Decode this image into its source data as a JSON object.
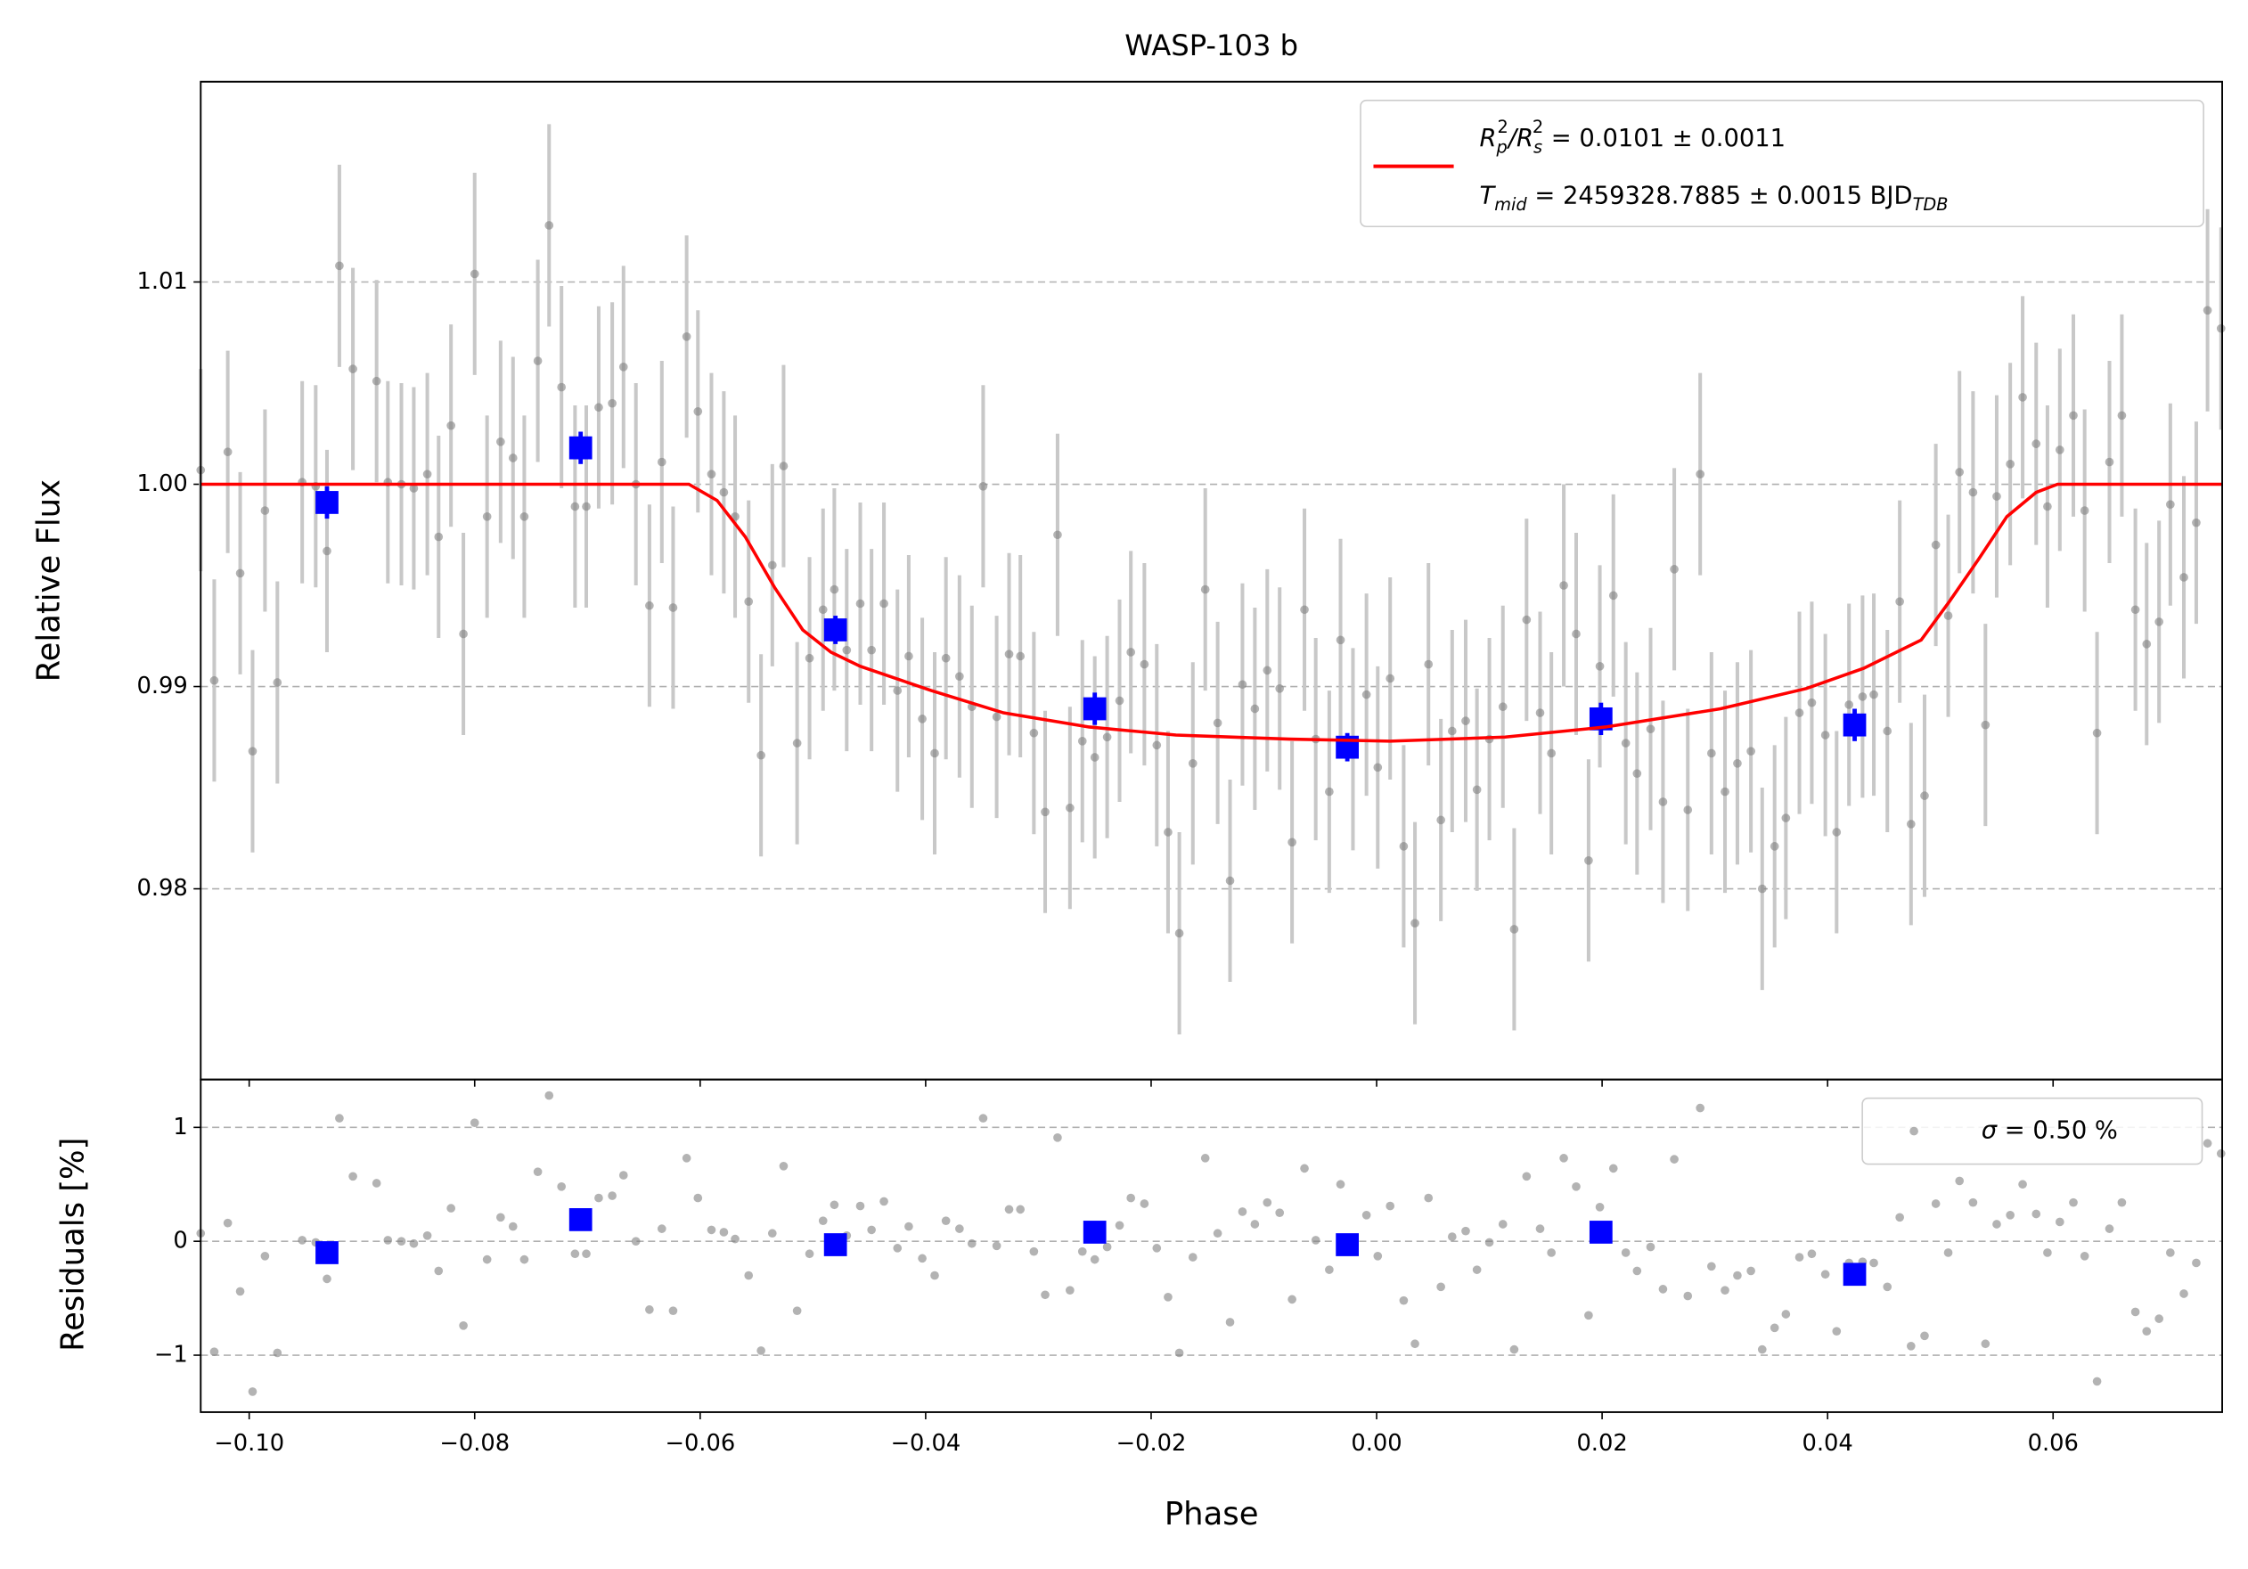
{
  "chart_data": [
    {
      "type": "scatter",
      "title": "WASP-103 b",
      "ylabel": "Relative Flux",
      "xlim": [
        -0.1043,
        0.075
      ],
      "ylim": [
        0.97057,
        1.0199
      ],
      "xticks": [
        -0.1,
        -0.08,
        -0.06,
        -0.04,
        -0.02,
        0,
        0.02,
        0.04,
        0.06
      ],
      "show_xtick_labels": false,
      "yticks": [
        0.98,
        0.99,
        {
          "value": 1,
          "label": "1.00"
        },
        1.01
      ],
      "grid": "y",
      "legend": "upper right",
      "series": [
        {
          "marker": "o",
          "color": "#808080",
          "yerr": 0.005,
          "x": [
            -0.1043,
            -0.1031,
            -0.1019,
            -0.1008,
            -0.0997,
            -0.0986,
            -0.0975,
            -0.0953,
            -0.0941,
            -0.0931,
            -0.092,
            -0.0908,
            -0.0887,
            -0.0877,
            -0.0865,
            -0.0854,
            -0.0842,
            -0.0832,
            -0.0821,
            -0.081,
            -0.08,
            -0.0789,
            -0.0777,
            -0.0766,
            -0.0756,
            -0.0744,
            -0.0734,
            -0.0723,
            -0.0711,
            -0.0701,
            -0.069,
            -0.0678,
            -0.0668,
            -0.0657,
            -0.0645,
            -0.0634,
            -0.0624,
            -0.0612,
            -0.0602,
            -0.059,
            -0.0579,
            -0.0569,
            -0.0557,
            -0.0546,
            -0.0536,
            -0.0526,
            -0.0514,
            -0.0503,
            -0.0491,
            -0.0481,
            -0.047,
            -0.0458,
            -0.0448,
            -0.0437,
            -0.0425,
            -0.0415,
            -0.0403,
            -0.0392,
            -0.0382,
            -0.037,
            -0.0359,
            -0.0349,
            -0.0337,
            -0.0326,
            -0.0316,
            -0.0304,
            -0.0294,
            -0.0283,
            -0.0272,
            -0.0261,
            -0.025,
            -0.0239,
            -0.0228,
            -0.0218,
            -0.0206,
            -0.0195,
            -0.0185,
            -0.0175,
            -0.0163,
            -0.0152,
            -0.0141,
            -0.013,
            -0.0119,
            -0.0108,
            -0.0097,
            -0.0086,
            -0.0075,
            -0.0064,
            -0.0054,
            -0.0042,
            -0.0032,
            -0.0021,
            -0.0009,
            0.0001,
            0.0012,
            0.0024,
            0.0034,
            0.0046,
            0.0057,
            0.0067,
            0.0079,
            0.0089,
            0.01,
            0.0112,
            0.0122,
            0.0133,
            0.0145,
            0.0155,
            0.0166,
            0.0177,
            0.0188,
            0.0198,
            0.021,
            0.0221,
            0.0231,
            0.0243,
            0.0254,
            0.0264,
            0.0276,
            0.0287,
            0.0297,
            0.0309,
            0.032,
            0.0332,
            0.0342,
            0.0353,
            0.0363,
            0.0375,
            0.0386,
            0.0398,
            0.0408,
            0.0419,
            0.0431,
            0.0441,
            0.0453,
            0.0464,
            0.0474,
            0.0486,
            0.0496,
            0.0507,
            0.0517,
            0.0529,
            0.054,
            0.055,
            0.0562,
            0.0573,
            0.0585,
            0.0595,
            0.0606,
            0.0618,
            0.0628,
            0.0639,
            0.065,
            0.0661,
            0.0673,
            0.0683,
            0.0694,
            0.0704,
            0.0716,
            0.0727,
            0.0737,
            0.0749
          ],
          "values": [
            1.0007,
            0.9903,
            1.0016,
            0.9956,
            0.9868,
            0.9987,
            0.9902,
            1.0001,
            0.9999,
            0.9967,
            1.0108,
            1.0057,
            1.0051,
            1.0001,
            1.0,
            0.9998,
            1.0005,
            0.9974,
            1.0029,
            0.9926,
            1.0104,
            0.9984,
            1.0021,
            1.0013,
            0.9984,
            1.0061,
            1.0128,
            1.0048,
            0.9989,
            0.9989,
            1.0038,
            1.004,
            1.0058,
            1.0,
            0.994,
            1.0011,
            0.9939,
            1.0073,
            1.0036,
            1.0005,
            0.9996,
            0.9984,
            0.9942,
            0.9866,
            0.996,
            1.0009,
            0.9872,
            0.9914,
            0.9938,
            0.9948,
            0.9918,
            0.9941,
            0.9918,
            0.9941,
            0.9898,
            0.9915,
            0.9884,
            0.9867,
            0.9914,
            0.9905,
            0.989,
            0.9999,
            0.9885,
            0.9916,
            0.9915,
            0.9877,
            0.9838,
            0.9975,
            0.984,
            0.9873,
            0.9865,
            0.9875,
            0.9893,
            0.9917,
            0.9911,
            0.9871,
            0.9828,
            0.9778,
            0.9862,
            0.9948,
            0.9882,
            0.9804,
            0.9901,
            0.9889,
            0.9908,
            0.9899,
            0.9823,
            0.9938,
            0.9874,
            0.9848,
            0.9923,
            0.9869,
            0.9896,
            0.986,
            0.9904,
            0.9821,
            0.9783,
            0.9911,
            0.9834,
            0.9878,
            0.9883,
            0.9849,
            0.9874,
            0.989,
            0.978,
            0.9933,
            0.9887,
            0.9867,
            0.995,
            0.9926,
            0.9814,
            0.991,
            0.9945,
            0.9872,
            0.9857,
            0.9879,
            0.9843,
            0.9958,
            0.9839,
            1.0005,
            0.9867,
            0.9848,
            0.9862,
            0.9868,
            0.98,
            0.9821,
            0.9835,
            0.9887,
            0.9892,
            0.9876,
            0.9828,
            0.9891,
            0.9895,
            0.9896,
            0.9878,
            0.9942,
            0.9832,
            0.9846,
            0.997,
            0.9935,
            1.0006,
            0.9996,
            0.9881,
            0.9994,
            1.001,
            1.0043,
            1.002,
            0.9989,
            1.0017,
            1.0034,
            0.9987,
            0.9877,
            1.0011,
            1.0034,
            0.9938,
            0.9921,
            0.9932,
            0.999,
            0.9954,
            0.9981,
            1.0086,
            1.0077
          ]
        },
        {
          "marker": "s",
          "color": "#0000ff",
          "x": [
            -0.0931,
            -0.0706,
            -0.048,
            -0.025,
            -0.0026,
            0.0199,
            0.0424
          ],
          "values": [
            0.9991,
            1.0018,
            0.9928,
            0.9889,
            0.987,
            0.9884,
            0.9881
          ],
          "yerr": [
            0.0008,
            0.0008,
            0.0007,
            0.0008,
            0.0007,
            0.0008,
            0.0008
          ]
        },
        {
          "marker": "line",
          "color": "#ff0000",
          "name": [
            [
              "R",
              "p",
              "2",
              "/R",
              "s",
              "2",
              " = 0.0101 ± 0.0011"
            ],
            [
              "T",
              "mid",
              " = 2459328.7885 ± 0.0015 BJD",
              "TDB"
            ]
          ],
          "x": [
            -0.1043,
            -0.061,
            -0.0585,
            -0.056,
            -0.0534,
            -0.0509,
            -0.0484,
            -0.0458,
            -0.0395,
            -0.0331,
            -0.0255,
            -0.0178,
            -0.0077,
            0.0012,
            0.0114,
            0.0203,
            0.0305,
            0.0381,
            0.0432,
            0.0483,
            0.0508,
            0.0534,
            0.0559,
            0.0585,
            0.0604,
            0.075
          ],
          "values": [
            1.0,
            1.0,
            0.9992,
            0.9974,
            0.9949,
            0.9928,
            0.9917,
            0.991,
            0.9898,
            0.9887,
            0.988,
            0.9876,
            0.9874,
            0.9873,
            0.9875,
            0.988,
            0.9889,
            0.9899,
            0.9909,
            0.9923,
            0.9942,
            0.9963,
            0.9984,
            0.9996,
            1.0,
            1.0
          ]
        }
      ]
    },
    {
      "type": "scatter",
      "xlabel": "Phase",
      "ylabel": "Residuals [%]",
      "xlim": [
        -0.1043,
        0.075
      ],
      "ylim": [
        -1.5,
        1.42
      ],
      "xticks": [
        {
          "value": -0.1,
          "label": "−0.10"
        },
        {
          "value": -0.08,
          "label": "−0.08"
        },
        {
          "value": -0.06,
          "label": "−0.06"
        },
        {
          "value": -0.04,
          "label": "−0.04"
        },
        {
          "value": -0.02,
          "label": "−0.02"
        },
        {
          "value": 0,
          "label": "0.00"
        },
        0.02,
        0.04,
        0.06
      ],
      "yticks": [
        {
          "value": -1,
          "label": "−1"
        },
        0,
        1
      ],
      "grid": "y",
      "legend": "upper right",
      "series": [
        {
          "marker": "o",
          "color": "#808080",
          "name": [
            [
              "σ",
              " = 0.50 %"
            ]
          ],
          "x": [
            -0.1043,
            -0.1031,
            -0.1019,
            -0.1008,
            -0.0997,
            -0.0986,
            -0.0975,
            -0.0953,
            -0.0941,
            -0.0931,
            -0.092,
            -0.0908,
            -0.0887,
            -0.0877,
            -0.0865,
            -0.0854,
            -0.0842,
            -0.0832,
            -0.0821,
            -0.081,
            -0.08,
            -0.0789,
            -0.0777,
            -0.0766,
            -0.0756,
            -0.0744,
            -0.0734,
            -0.0723,
            -0.0711,
            -0.0701,
            -0.069,
            -0.0678,
            -0.0668,
            -0.0657,
            -0.0645,
            -0.0634,
            -0.0624,
            -0.0612,
            -0.0602,
            -0.059,
            -0.0579,
            -0.0569,
            -0.0557,
            -0.0546,
            -0.0536,
            -0.0526,
            -0.0514,
            -0.0503,
            -0.0491,
            -0.0481,
            -0.047,
            -0.0458,
            -0.0448,
            -0.0437,
            -0.0425,
            -0.0415,
            -0.0403,
            -0.0392,
            -0.0382,
            -0.037,
            -0.0359,
            -0.0349,
            -0.0337,
            -0.0326,
            -0.0316,
            -0.0304,
            -0.0294,
            -0.0283,
            -0.0272,
            -0.0261,
            -0.025,
            -0.0239,
            -0.0228,
            -0.0218,
            -0.0206,
            -0.0195,
            -0.0185,
            -0.0175,
            -0.0163,
            -0.0152,
            -0.0141,
            -0.013,
            -0.0119,
            -0.0108,
            -0.0097,
            -0.0086,
            -0.0075,
            -0.0064,
            -0.0054,
            -0.0042,
            -0.0032,
            -0.0021,
            -0.0009,
            0.0001,
            0.0012,
            0.0024,
            0.0034,
            0.0046,
            0.0057,
            0.0067,
            0.0079,
            0.0089,
            0.01,
            0.0112,
            0.0122,
            0.0133,
            0.0145,
            0.0155,
            0.0166,
            0.0177,
            0.0188,
            0.0198,
            0.021,
            0.0221,
            0.0231,
            0.0243,
            0.0254,
            0.0264,
            0.0276,
            0.0287,
            0.0297,
            0.0309,
            0.032,
            0.0332,
            0.0342,
            0.0353,
            0.0363,
            0.0375,
            0.0386,
            0.0398,
            0.0408,
            0.0419,
            0.0431,
            0.0441,
            0.0453,
            0.0464,
            0.0474,
            0.0486,
            0.0496,
            0.0507,
            0.0517,
            0.0529,
            0.054,
            0.055,
            0.0562,
            0.0573,
            0.0585,
            0.0595,
            0.0606,
            0.0618,
            0.0628,
            0.0639,
            0.065,
            0.0661,
            0.0673,
            0.0683,
            0.0694,
            0.0704,
            0.0716,
            0.0727,
            0.0737,
            0.0749
          ],
          "values": [
            0.07,
            -0.97,
            0.16,
            -0.44,
            -1.32,
            -0.13,
            -0.98,
            0.01,
            -0.01,
            -0.33,
            1.08,
            0.57,
            0.51,
            0.01,
            0.0,
            -0.02,
            0.05,
            -0.26,
            0.29,
            -0.74,
            1.04,
            -0.16,
            0.21,
            0.13,
            -0.16,
            0.61,
            1.28,
            0.48,
            -0.11,
            -0.11,
            0.38,
            0.4,
            0.58,
            0.0,
            -0.6,
            0.11,
            -0.61,
            0.73,
            0.38,
            0.1,
            0.08,
            0.02,
            -0.3,
            -0.96,
            0.07,
            0.66,
            -0.61,
            -0.11,
            0.18,
            0.32,
            0.05,
            0.31,
            0.1,
            0.35,
            -0.06,
            0.13,
            -0.15,
            -0.3,
            0.18,
            0.11,
            -0.02,
            1.08,
            -0.04,
            0.28,
            0.28,
            -0.09,
            -0.47,
            0.91,
            -0.43,
            -0.09,
            -0.16,
            -0.05,
            0.14,
            0.38,
            0.33,
            -0.06,
            -0.49,
            -0.98,
            -0.14,
            0.73,
            0.07,
            -0.71,
            0.26,
            0.15,
            0.34,
            0.25,
            -0.51,
            0.64,
            0.01,
            -0.25,
            0.5,
            -0.04,
            0.23,
            -0.13,
            0.31,
            -0.52,
            -0.9,
            0.38,
            -0.4,
            0.04,
            0.09,
            -0.25,
            -0.01,
            0.15,
            -0.95,
            0.57,
            0.11,
            -0.1,
            0.73,
            0.48,
            -0.65,
            0.3,
            0.64,
            -0.1,
            -0.26,
            -0.05,
            -0.42,
            0.72,
            -0.48,
            1.17,
            -0.22,
            -0.43,
            -0.3,
            -0.26,
            -0.95,
            -0.76,
            -0.64,
            -0.14,
            -0.11,
            -0.29,
            -0.79,
            -0.19,
            -0.18,
            -0.19,
            -0.4,
            0.21,
            -0.92,
            -0.83,
            0.33,
            -0.1,
            0.53,
            0.34,
            -0.9,
            0.15,
            0.23,
            0.5,
            0.24,
            -0.1,
            0.17,
            0.34,
            -0.13,
            -1.23,
            0.11,
            0.34,
            -0.62,
            -0.79,
            -0.68,
            -0.1,
            -0.46,
            -0.19,
            0.86,
            0.77
          ]
        },
        {
          "marker": "s",
          "color": "#0000ff",
          "x": [
            -0.0931,
            -0.0706,
            -0.048,
            -0.025,
            -0.0026,
            0.0199,
            0.0424
          ],
          "values": [
            -0.1,
            0.19,
            -0.03,
            0.08,
            -0.03,
            0.08,
            -0.29
          ]
        }
      ]
    }
  ]
}
